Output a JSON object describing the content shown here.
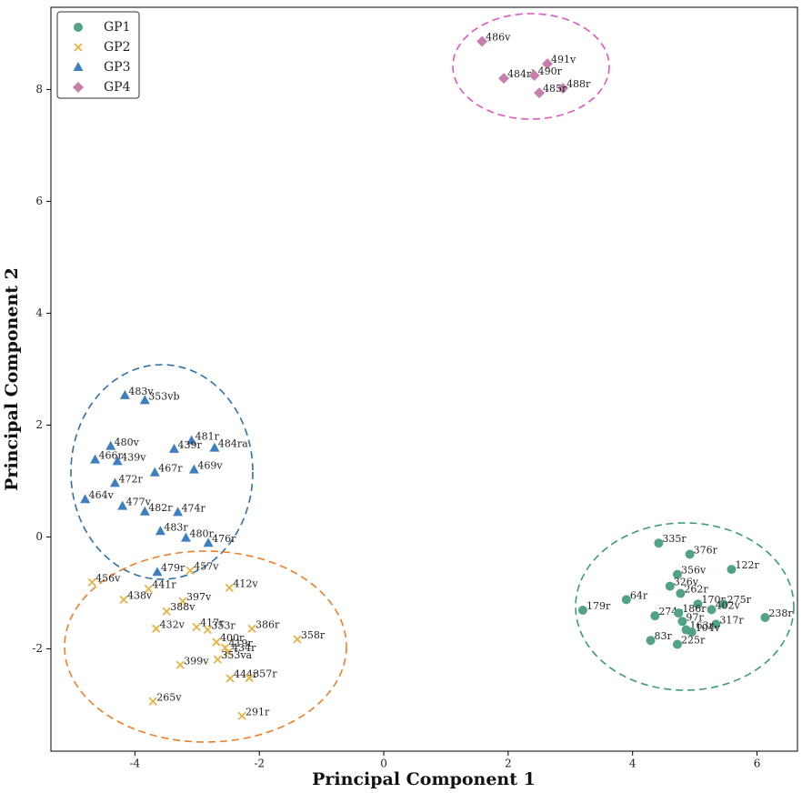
{
  "chart_data": {
    "type": "scatter",
    "xlabel": "Principal Component 1",
    "ylabel": "Principal Component 2",
    "xlim": [
      -5.35,
      6.65
    ],
    "ylim": [
      -3.83,
      9.47
    ],
    "xticks": [
      -4,
      -2,
      0,
      2,
      4,
      6
    ],
    "yticks": [
      -2,
      0,
      2,
      4,
      6,
      8
    ],
    "legend": "upper left",
    "series": [
      {
        "name": "GP1",
        "color": "#52a385",
        "marker": "circle",
        "labels": [
          "335r",
          "376r",
          "122r",
          "356v",
          "326v",
          "262r",
          "64r",
          "179r",
          "170r",
          "275r",
          "402v",
          "238r",
          "274r",
          "186r",
          "97r",
          "317r",
          "163r",
          "104v",
          "83r",
          "225r"
        ],
        "x": [
          4.42,
          4.92,
          5.59,
          4.72,
          4.6,
          4.77,
          3.9,
          3.2,
          5.05,
          5.46,
          5.27,
          6.13,
          4.36,
          4.74,
          4.8,
          5.34,
          4.86,
          4.95,
          4.29,
          4.72
        ],
        "y": [
          -0.11,
          -0.31,
          -0.58,
          -0.67,
          -0.88,
          -1.01,
          -1.12,
          -1.31,
          -1.2,
          -1.2,
          -1.3,
          -1.44,
          -1.41,
          -1.36,
          -1.51,
          -1.56,
          -1.66,
          -1.7,
          -1.85,
          -1.92
        ]
      },
      {
        "name": "GP2",
        "color": "#e6b445",
        "marker": "x",
        "labels": [
          "456v",
          "441r",
          "438v",
          "457v",
          "412v",
          "397v",
          "388v",
          "432v",
          "417r",
          "353r",
          "386r",
          "358r",
          "400r",
          "419r",
          "434r",
          "353va",
          "399v",
          "444r",
          "357r",
          "265v",
          "291r"
        ],
        "x": [
          -4.69,
          -3.78,
          -4.18,
          -3.11,
          -2.48,
          -3.23,
          -3.49,
          -3.66,
          -3.01,
          -2.83,
          -2.12,
          -1.39,
          -2.69,
          -2.55,
          -2.5,
          -2.67,
          -3.27,
          -2.47,
          -2.16,
          -3.71,
          -2.28
        ],
        "y": [
          -0.81,
          -0.93,
          -1.12,
          -0.6,
          -0.91,
          -1.15,
          -1.33,
          -1.64,
          -1.61,
          -1.66,
          -1.64,
          -1.83,
          -1.88,
          -1.98,
          -2.06,
          -2.19,
          -2.29,
          -2.53,
          -2.52,
          -2.94,
          -3.2
        ]
      },
      {
        "name": "GP3",
        "color": "#3f7fbf",
        "marker": "triangle",
        "labels": [
          "483v",
          "353vb",
          "480v",
          "481r",
          "484ra",
          "439r",
          "466r",
          "439v",
          "467r",
          "469v",
          "472r",
          "464v",
          "477v",
          "482r",
          "474r",
          "483r",
          "480r",
          "476r",
          "479r"
        ],
        "x": [
          -4.16,
          -3.84,
          -4.39,
          -3.09,
          -2.72,
          -3.37,
          -4.64,
          -4.28,
          -3.68,
          -3.05,
          -4.32,
          -4.8,
          -4.2,
          -3.84,
          -3.31,
          -3.59,
          -3.18,
          -2.82,
          -3.64
        ],
        "y": [
          2.53,
          2.44,
          1.62,
          1.72,
          1.59,
          1.57,
          1.38,
          1.35,
          1.15,
          1.2,
          0.96,
          0.67,
          0.55,
          0.45,
          0.44,
          0.1,
          -0.02,
          -0.11,
          -0.63
        ]
      },
      {
        "name": "GP4",
        "color": "#c77fb0",
        "marker": "diamond",
        "labels": [
          "486v",
          "491v",
          "484rb",
          "490r",
          "488r",
          "485r"
        ],
        "x": [
          1.58,
          2.63,
          1.93,
          2.42,
          2.88,
          2.5
        ],
        "y": [
          8.86,
          8.46,
          8.2,
          8.25,
          8.02,
          7.94
        ]
      }
    ]
  }
}
